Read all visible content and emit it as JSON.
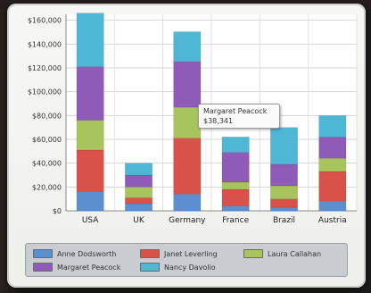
{
  "chart_data": {
    "type": "bar",
    "stacked": true,
    "categories": [
      "USA",
      "UK",
      "Germany",
      "France",
      "Brazil",
      "Austria"
    ],
    "series": [
      {
        "name": "Anne Dodsworth",
        "color": "#5b8fd0",
        "values": [
          16000,
          6000,
          14000,
          4000,
          3000,
          8000
        ]
      },
      {
        "name": "Janet Leverling",
        "color": "#d9524a",
        "values": [
          35000,
          5000,
          47000,
          14000,
          7000,
          25000
        ]
      },
      {
        "name": "Laura Callahan",
        "color": "#a8c45c",
        "values": [
          25000,
          9000,
          26000,
          6000,
          11000,
          11000
        ]
      },
      {
        "name": "Margaret Peacock",
        "color": "#8e5bb8",
        "values": [
          45000,
          10000,
          38341,
          25000,
          18000,
          18000
        ]
      },
      {
        "name": "Nancy Davolio",
        "color": "#4fb7d6",
        "values": [
          45000,
          10000,
          25000,
          13000,
          31000,
          18000
        ]
      }
    ],
    "yticks": [
      "$0",
      "$20,000",
      "$40,000",
      "$60,000",
      "$80,000",
      "$100,000",
      "$120,000",
      "$140,000",
      "$160,000"
    ],
    "ylim": [
      0,
      165000
    ],
    "grid": true,
    "legend_position": "bottom",
    "tooltip": {
      "series": "Margaret Peacock",
      "value": "$38,341",
      "category": "Germany"
    }
  }
}
